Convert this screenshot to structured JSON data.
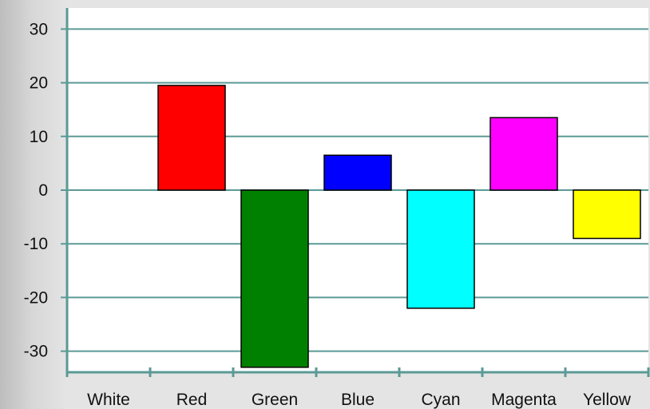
{
  "chart_data": {
    "type": "bar",
    "categories": [
      "White",
      "Red",
      "Green",
      "Blue",
      "Cyan",
      "Magenta",
      "Yellow"
    ],
    "values": [
      0,
      19.5,
      -33,
      6.5,
      -22,
      13.5,
      -9
    ],
    "bar_colors": [
      "#ffffff",
      "#ff0000",
      "#008000",
      "#0000ff",
      "#00ffff",
      "#ff00ff",
      "#ffff00"
    ],
    "y_ticks": [
      30,
      20,
      10,
      0,
      -10,
      -20,
      -30
    ],
    "ylim": [
      -34,
      34
    ],
    "grid": true,
    "legend": "none",
    "title": "",
    "xlabel": "",
    "ylabel": "",
    "colors": {
      "axis": "#5b9a96",
      "grid": "#5b9a96",
      "plot_background": "#ffffff",
      "bar_border": "#000000"
    }
  }
}
